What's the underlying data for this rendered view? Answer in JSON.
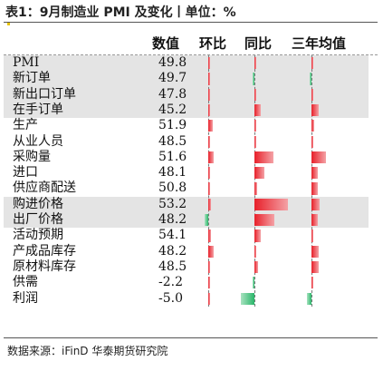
{
  "title": "表1：9月制造业 PMI 及变化丨单位：%",
  "source": "数据来源：iFinD  华泰期货研究院",
  "colors": {
    "positive": "#e8202a",
    "negative": "#2ab66a",
    "band": "#e4e4e4"
  },
  "chart_data": {
    "type": "table",
    "columns": [
      "数值",
      "环比",
      "同比",
      "三年均值"
    ],
    "rows": [
      {
        "name": "PMI",
        "value": "49.8",
        "mom": 0.3,
        "yoy": 0.2,
        "avg3": 0.3
      },
      {
        "name": "新订单",
        "value": "49.7",
        "mom": 0.3,
        "yoy": -0.3,
        "avg3": -0.5
      },
      {
        "name": "新出口订单",
        "value": "47.8",
        "mom": 0.4,
        "yoy": 0.2,
        "avg3": 0.4
      },
      {
        "name": "在手订单",
        "value": "45.2",
        "mom": 0.4,
        "yoy": 1.2,
        "avg3": 1.6
      },
      {
        "name": "生产",
        "value": "51.9",
        "mom": 0.8,
        "yoy": 0.3,
        "avg3": 0.6
      },
      {
        "name": "从业人员",
        "value": "48.5",
        "mom": 0.3,
        "yoy": 0.3,
        "avg3": 0.3
      },
      {
        "name": "采购量",
        "value": "51.6",
        "mom": 1.0,
        "yoy": 3.4,
        "avg3": 3.2
      },
      {
        "name": "进口",
        "value": "48.1",
        "mom": 0.2,
        "yoy": 1.7,
        "avg3": 1.4
      },
      {
        "name": "供应商配送",
        "value": "50.8",
        "mom": 0.4,
        "yoy": 0.5,
        "avg3": 1.4
      },
      {
        "name": "购进价格",
        "value": "53.2",
        "mom": 0.5,
        "yoy": 6.0,
        "avg3": 1.7
      },
      {
        "name": "出厂价格",
        "value": "48.2",
        "mom": -0.7,
        "yoy": 3.6,
        "avg3": 1.4
      },
      {
        "name": "活动预期",
        "value": "54.1",
        "mom": 0.5,
        "yoy": 1.2,
        "avg3": 0.3
      },
      {
        "name": "产成品库存",
        "value": "48.2",
        "mom": 1.0,
        "yoy": 0.4,
        "avg3": 1.5
      },
      {
        "name": "原材料库存",
        "value": "48.5",
        "mom": 0.4,
        "yoy": 0.7,
        "avg3": 1.6
      },
      {
        "name": "供需",
        "value": "-2.2",
        "mom": 0.3,
        "yoy": -0.2,
        "avg3": 0.3
      },
      {
        "name": "利润",
        "value": "-5.0",
        "mom": 0.2,
        "yoy": -2.4,
        "avg3": -1.1
      }
    ]
  }
}
